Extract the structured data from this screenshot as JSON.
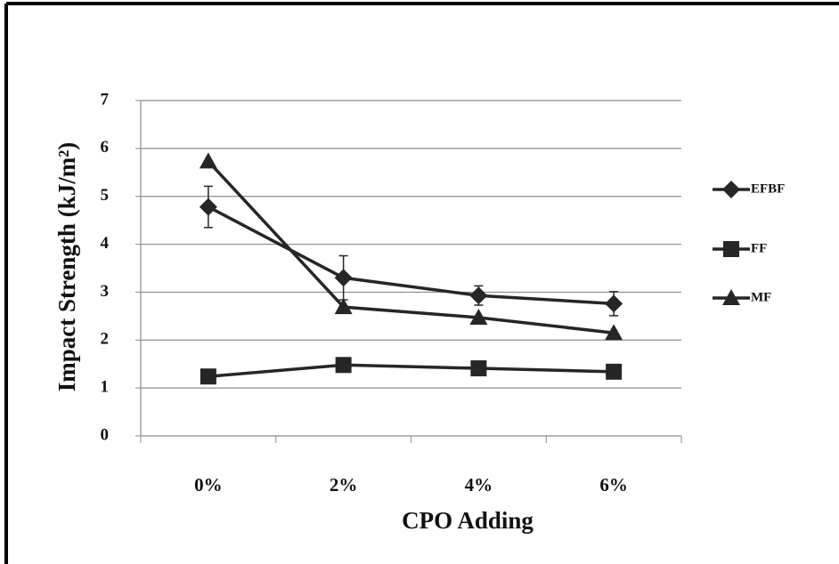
{
  "chart_data": {
    "type": "line",
    "x_label": "CPO Adding",
    "y_label": "Impact  Strength (kJ/m²)",
    "categories": [
      "0%",
      "2%",
      "4%",
      "6%"
    ],
    "series": [
      {
        "name": "EFBF",
        "color": "#262626",
        "marker": "diamond",
        "values": [
          4.78,
          3.3,
          2.93,
          2.76
        ],
        "errors": [
          0.43,
          0.46,
          0.2,
          0.25
        ]
      },
      {
        "name": "FF",
        "color": "#262626",
        "marker": "square",
        "values": [
          1.24,
          1.48,
          1.41,
          1.34
        ]
      },
      {
        "name": "MF",
        "color": "#262626",
        "marker": "triangle",
        "values": [
          5.73,
          2.69,
          2.47,
          2.15
        ]
      }
    ],
    "ylim": [
      0,
      7
    ],
    "yticks": [
      0,
      1,
      2,
      3,
      4,
      5,
      6,
      7
    ],
    "grid": true
  }
}
